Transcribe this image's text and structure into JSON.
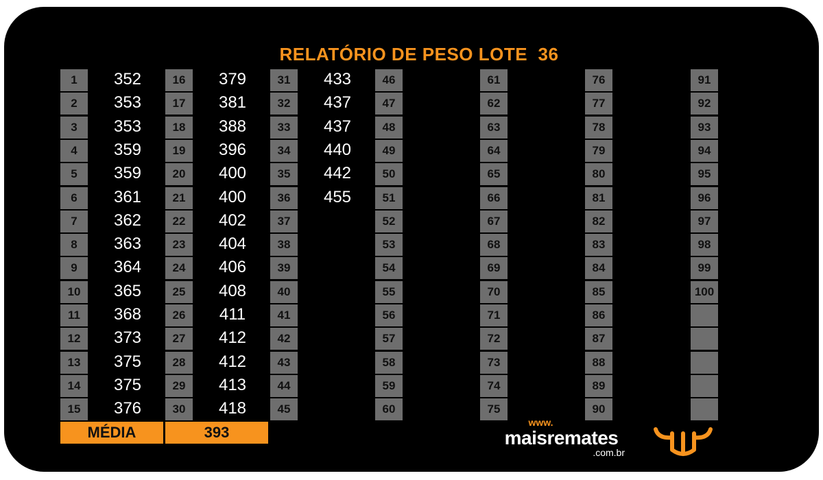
{
  "title": "RELATÓRIO DE PESO LOTE  36",
  "columns": [
    {
      "numbers": [
        "1",
        "2",
        "3",
        "4",
        "5",
        "6",
        "7",
        "8",
        "9",
        "10",
        "11",
        "12",
        "13",
        "14",
        "15"
      ],
      "values": [
        "352",
        "353",
        "353",
        "359",
        "359",
        "361",
        "362",
        "363",
        "364",
        "365",
        "368",
        "373",
        "375",
        "375",
        "376"
      ]
    },
    {
      "numbers": [
        "16",
        "17",
        "18",
        "19",
        "20",
        "21",
        "22",
        "23",
        "24",
        "25",
        "26",
        "27",
        "28",
        "29",
        "30"
      ],
      "values": [
        "379",
        "381",
        "388",
        "396",
        "400",
        "400",
        "402",
        "404",
        "406",
        "408",
        "411",
        "412",
        "412",
        "413",
        "418"
      ]
    },
    {
      "numbers": [
        "31",
        "32",
        "33",
        "34",
        "35",
        "36",
        "37",
        "38",
        "39",
        "40",
        "41",
        "42",
        "43",
        "44",
        "45"
      ],
      "values": [
        "433",
        "437",
        "437",
        "440",
        "442",
        "455",
        "",
        "",
        "",
        "",
        "",
        "",
        "",
        "",
        ""
      ]
    },
    {
      "numbers": [
        "46",
        "47",
        "48",
        "49",
        "50",
        "51",
        "52",
        "53",
        "54",
        "55",
        "56",
        "57",
        "58",
        "59",
        "60"
      ],
      "values": [
        "",
        "",
        "",
        "",
        "",
        "",
        "",
        "",
        "",
        "",
        "",
        "",
        "",
        "",
        ""
      ]
    },
    {
      "numbers": [
        "61",
        "62",
        "63",
        "64",
        "65",
        "66",
        "67",
        "68",
        "69",
        "70",
        "71",
        "72",
        "73",
        "74",
        "75"
      ],
      "values": [
        "",
        "",
        "",
        "",
        "",
        "",
        "",
        "",
        "",
        "",
        "",
        "",
        "",
        "",
        ""
      ]
    },
    {
      "numbers": [
        "76",
        "77",
        "78",
        "79",
        "80",
        "81",
        "82",
        "83",
        "84",
        "85",
        "86",
        "87",
        "88",
        "89",
        "90"
      ],
      "values": [
        "",
        "",
        "",
        "",
        "",
        "",
        "",
        "",
        "",
        "",
        "",
        "",
        "",
        "",
        ""
      ]
    },
    {
      "numbers": [
        "91",
        "92",
        "93",
        "94",
        "95",
        "96",
        "97",
        "98",
        "99",
        "100",
        "",
        "",
        "",
        "",
        ""
      ],
      "values": [
        "",
        "",
        "",
        "",
        "",
        "",
        "",
        "",
        "",
        "",
        "",
        "",
        "",
        "",
        ""
      ]
    }
  ],
  "media": {
    "label": "MÉDIA",
    "value": "393"
  },
  "brand": {
    "www": "www.",
    "name": "maisremates",
    "domain": ".com.br"
  },
  "colors": {
    "accent": "#f7931e",
    "cell_gray": "#6e6e6e",
    "background": "#000000",
    "text": "#ffffff"
  },
  "logo_icon": "bull-head-icon"
}
